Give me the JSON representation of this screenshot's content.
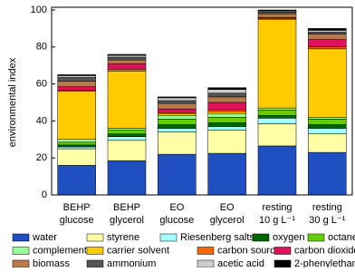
{
  "chart_data": {
    "type": "stacked_bar",
    "y_label": "environmental index",
    "categories": [
      [
        "BEHP",
        "glucose"
      ],
      [
        "BEHP",
        "glycerol"
      ],
      [
        "EO",
        "glucose"
      ],
      [
        "EO",
        "glycerol"
      ],
      [
        "resting",
        "10 g L⁻¹"
      ],
      [
        "resting",
        "30 g L⁻¹"
      ]
    ],
    "ylim": [
      0,
      100
    ],
    "yticks": [
      0,
      20,
      40,
      60,
      80,
      100
    ],
    "series": [
      {
        "name": "water",
        "color": "#1f4fc0",
        "values": [
          16,
          18.5,
          22,
          22.5,
          26.5,
          23
        ]
      },
      {
        "name": "styrene",
        "color": "#ffffa6",
        "values": [
          9,
          11,
          12,
          12.5,
          12,
          10
        ]
      },
      {
        "name": "Riesenberg salts",
        "color": "#a6ffff",
        "values": [
          1,
          2,
          2,
          2,
          3,
          3
        ]
      },
      {
        "name": "oxygen",
        "color": "#006400",
        "values": [
          1,
          1.5,
          2,
          2,
          1.5,
          2
        ]
      },
      {
        "name": "octane",
        "color": "#66cc00",
        "values": [
          1.5,
          2,
          3,
          3,
          3,
          3
        ]
      },
      {
        "name": "complements",
        "color": "#99ff99",
        "values": [
          1.5,
          1,
          2,
          2,
          1,
          1
        ]
      },
      {
        "name": "carrier solvent",
        "color": "#ffcc00",
        "values": [
          26,
          31,
          1,
          1,
          48,
          37
        ]
      },
      {
        "name": "carbon source",
        "color": "#ff6600",
        "values": [
          0.5,
          1,
          0.5,
          1,
          0.5,
          1
        ]
      },
      {
        "name": "carbon dioxide",
        "color": "#e0105a",
        "values": [
          2,
          3,
          2,
          4,
          0.5,
          4
        ]
      },
      {
        "name": "biomass",
        "color": "#b87a4b",
        "values": [
          3,
          2,
          3,
          3,
          2,
          3
        ]
      },
      {
        "name": "ammonium",
        "color": "#555555",
        "values": [
          2,
          1.5,
          1.5,
          2,
          1,
          1
        ]
      },
      {
        "name": "acetic acid",
        "color": "#cccccc",
        "values": [
          1,
          1,
          1.5,
          2,
          0.5,
          1
        ]
      },
      {
        "name": "2-phenylethanol",
        "color": "#000000",
        "values": [
          0.5,
          0.5,
          0.5,
          1,
          0.5,
          1
        ]
      }
    ]
  }
}
